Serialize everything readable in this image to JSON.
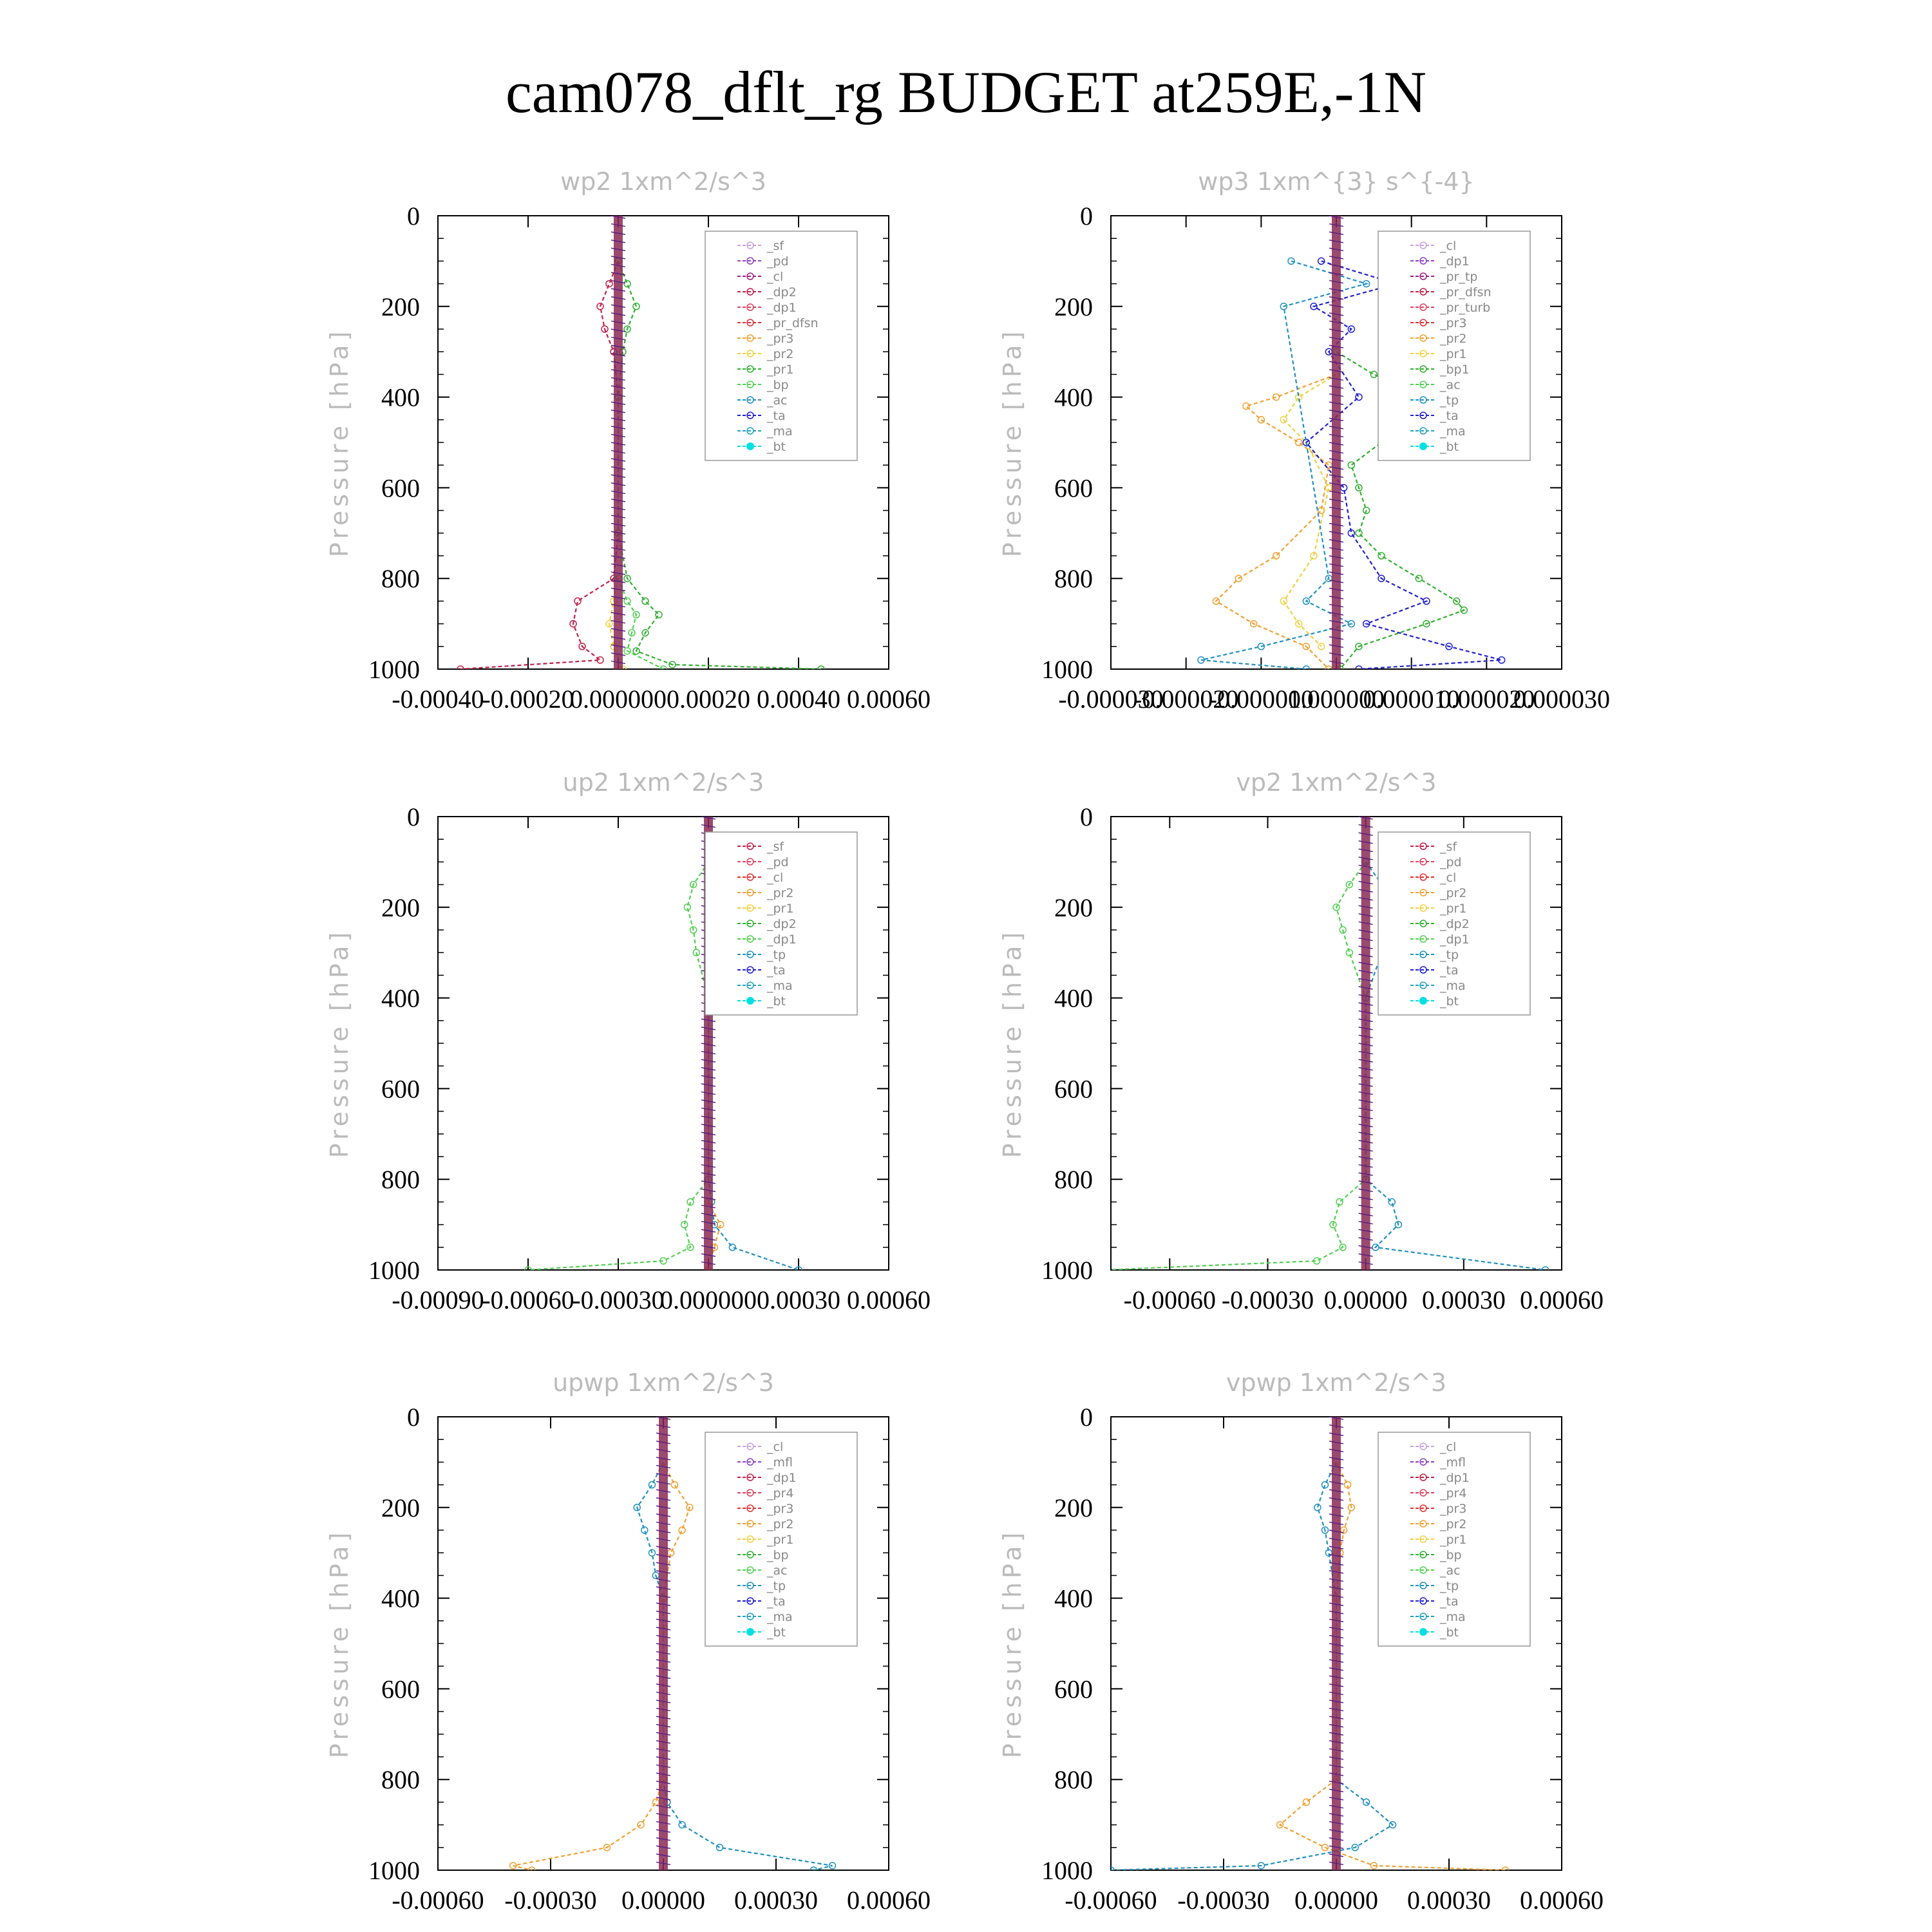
{
  "title": "cam078_dflt_rg  BUDGET at259E,-1N",
  "chart_data": [
    {
      "type": "line",
      "title": "wp2   1xm^2/s^3",
      "ylabel": "Pressure [hPa]",
      "ylim": [
        1000,
        0
      ],
      "yticks": [
        "0",
        "200",
        "400",
        "600",
        "800",
        "1000"
      ],
      "xlim": [
        -0.0004,
        0.0006
      ],
      "xticks": [
        "-0.00040",
        "-0.00020",
        "0.000000",
        "0.00020",
        "0.00040",
        "0.00060"
      ],
      "legend": [
        "_sf",
        "_pd",
        "_cl",
        "_dp2",
        "_dp1",
        "_pr_dfsn",
        "_pr3",
        "_pr2",
        "_pr1",
        "_bp",
        "_ac",
        "_ta",
        "_ma",
        "_bt"
      ],
      "colors": [
        "#c8a0e0",
        "#9040c0",
        "#a02080",
        "#c0204a",
        "#e04060",
        "#e03030",
        "#f0a030",
        "#f0d040",
        "#30b030",
        "#50d050",
        "#2090c0",
        "#2020d0",
        "#20a0c0",
        "#00e0e0"
      ],
      "series": [
        {
          "name": "_dp2",
          "y": [
            100,
            150,
            200,
            250,
            300,
            400,
            700,
            800,
            850,
            900,
            950,
            980,
            1000
          ],
          "x": [
            0,
            -2e-05,
            -4e-05,
            -3e-05,
            -1e-05,
            0,
            0,
            -1e-05,
            -9e-05,
            -0.0001,
            -8e-05,
            -4e-05,
            -0.00035
          ]
        },
        {
          "name": "_pr1",
          "y": [
            100,
            150,
            200,
            250,
            300,
            400,
            700,
            800,
            850,
            880,
            920,
            960,
            990,
            1000
          ],
          "x": [
            0,
            2e-05,
            4e-05,
            2e-05,
            1e-05,
            0,
            0,
            2e-05,
            6e-05,
            9e-05,
            6e-05,
            4e-05,
            0.00012,
            0.00045
          ]
        },
        {
          "name": "_pr2",
          "y": [
            800,
            850,
            900,
            950,
            1000
          ],
          "x": [
            0,
            -1e-05,
            -2e-05,
            -1e-05,
            1e-05
          ]
        },
        {
          "name": "_bp",
          "y": [
            800,
            850,
            880,
            920,
            960,
            1000
          ],
          "x": [
            0,
            2e-05,
            4e-05,
            3e-05,
            2e-05,
            0.0001
          ]
        }
      ]
    },
    {
      "type": "line",
      "title": "wp3   1xm^{3} s^{-4}",
      "ylabel": "Pressure [hPa]",
      "ylim": [
        1000,
        0
      ],
      "yticks": [
        "0",
        "200",
        "400",
        "600",
        "800",
        "1000"
      ],
      "xlim": [
        -3e-05,
        3e-05
      ],
      "xticks": [
        "-0.000030",
        "-0.000020",
        "-0.000010",
        "0.000000",
        "0.000010",
        "0.000020",
        "0.000030"
      ],
      "legend": [
        "_cl",
        "_dp1",
        "_pr_tp",
        "_pr_dfsn",
        "_pr_turb",
        "_pr3",
        "_pr2",
        "_pr1",
        "_bp1",
        "_ac",
        "_tp",
        "_ta",
        "_ma",
        "_bt"
      ],
      "colors": [
        "#c8a0e0",
        "#9040c0",
        "#a02080",
        "#c0204a",
        "#e04060",
        "#e03030",
        "#f0a030",
        "#f0d040",
        "#30b030",
        "#50d050",
        "#2090c0",
        "#2020d0",
        "#20a0c0",
        "#00e0e0"
      ],
      "series": [
        {
          "name": "_bp1",
          "y": [
            300,
            350,
            400,
            420,
            450,
            500,
            550,
            600,
            650,
            700,
            750,
            800,
            850,
            870,
            900,
            950,
            1000
          ],
          "x": [
            0,
            5e-06,
            1.2e-05,
            1.3e-05,
            1.2e-05,
            6e-06,
            2e-06,
            3e-06,
            4e-06,
            3e-06,
            6e-06,
            1.1e-05,
            1.6e-05,
            1.7e-05,
            1.2e-05,
            3e-06,
            5e-07
          ]
        },
        {
          "name": "_pr2",
          "y": [
            350,
            400,
            420,
            450,
            500,
            550,
            650,
            750,
            800,
            850,
            900,
            950,
            1000
          ],
          "x": [
            0,
            -8e-06,
            -1.2e-05,
            -1e-05,
            -5e-06,
            -1e-06,
            -2e-06,
            -8e-06,
            -1.3e-05,
            -1.6e-05,
            -1.1e-05,
            -4e-06,
            -1e-06
          ]
        },
        {
          "name": "_pr1",
          "y": [
            350,
            400,
            450,
            500,
            600,
            750,
            850,
            900,
            950
          ],
          "x": [
            0,
            -5e-06,
            -7e-06,
            -4e-06,
            -1e-06,
            -3e-06,
            -7e-06,
            -5e-06,
            -2e-06
          ]
        },
        {
          "name": "_ta",
          "y": [
            100,
            150,
            200,
            250,
            300,
            400,
            500,
            600,
            700,
            800,
            850,
            900,
            950,
            980,
            1000
          ],
          "x": [
            -2e-06,
            8e-06,
            -3e-06,
            2e-06,
            -1e-06,
            3e-06,
            -4e-06,
            1e-06,
            2e-06,
            6e-06,
            1.2e-05,
            4e-06,
            1.5e-05,
            2.2e-05,
            3e-06
          ]
        },
        {
          "name": "_tp",
          "y": [
            100,
            150,
            200,
            800,
            850,
            900,
            950,
            980,
            1000
          ],
          "x": [
            -6e-06,
            4e-06,
            -7e-06,
            -1e-06,
            -4e-06,
            2e-06,
            -1e-05,
            -1.8e-05,
            -4e-06
          ]
        }
      ]
    },
    {
      "type": "line",
      "title": "up2   1xm^2/s^3",
      "ylabel": "Pressure [hPa]",
      "ylim": [
        1000,
        0
      ],
      "yticks": [
        "0",
        "200",
        "400",
        "600",
        "800",
        "1000"
      ],
      "xlim": [
        -0.0009,
        0.0006
      ],
      "xticks": [
        "-0.00090",
        "-0.00060",
        "-0.00030",
        "0.000000",
        "0.00030",
        "0.00060"
      ],
      "legend": [
        "_sf",
        "_pd",
        "_cl",
        "_pr2",
        "_pr1",
        "_dp2",
        "_dp1",
        "_tp",
        "_ta",
        "_ma",
        "_bt"
      ],
      "colors": [
        "#c0204a",
        "#e04060",
        "#e03030",
        "#f0a030",
        "#f0d040",
        "#30b030",
        "#50d050",
        "#2090c0",
        "#2020d0",
        "#20a0c0",
        "#00e0e0"
      ],
      "series": [
        {
          "name": "_dp1",
          "y": [
            100,
            150,
            200,
            250,
            300,
            400,
            800,
            850,
            900,
            950,
            980,
            1000
          ],
          "x": [
            0,
            -5e-05,
            -7e-05,
            -5e-05,
            -4e-05,
            0,
            0,
            -6e-05,
            -8e-05,
            -6e-05,
            -0.00015,
            -0.0006
          ]
        },
        {
          "name": "_tp",
          "y": [
            100,
            150,
            200,
            250,
            300,
            350,
            400,
            800,
            850,
            900,
            950,
            1000
          ],
          "x": [
            0,
            6e-05,
            8e-05,
            6e-05,
            7e-05,
            3e-05,
            0,
            0,
            1e-05,
            2e-05,
            8e-05,
            0.0003
          ]
        },
        {
          "name": "_pr2",
          "y": [
            850,
            900,
            950,
            1000
          ],
          "x": [
            0,
            4e-05,
            2e-05,
            0
          ]
        }
      ]
    },
    {
      "type": "line",
      "title": "vp2   1xm^2/s^3",
      "ylabel": "Pressure [hPa]",
      "ylim": [
        1000,
        0
      ],
      "yticks": [
        "0",
        "200",
        "400",
        "600",
        "800",
        "1000"
      ],
      "xlim": [
        -0.00078,
        0.0006
      ],
      "xticks": [
        "-0.00060",
        "-0.00030",
        "0.00000",
        "0.00030",
        "0.00060"
      ],
      "legend": [
        "_sf",
        "_pd",
        "_cl",
        "_pr2",
        "_pr1",
        "_dp2",
        "_dp1",
        "_tp",
        "_ta",
        "_ma",
        "_bt"
      ],
      "colors": [
        "#c0204a",
        "#e04060",
        "#e03030",
        "#f0a030",
        "#f0d040",
        "#30b030",
        "#50d050",
        "#2090c0",
        "#2020d0",
        "#20a0c0",
        "#00e0e0"
      ],
      "series": [
        {
          "name": "_dp1",
          "y": [
            100,
            150,
            200,
            250,
            300,
            400,
            800,
            850,
            900,
            950,
            980,
            1000
          ],
          "x": [
            0,
            -5e-05,
            -9e-05,
            -7e-05,
            -5e-05,
            0,
            0,
            -8e-05,
            -0.0001,
            -7e-05,
            -0.00015,
            -0.0008
          ]
        },
        {
          "name": "_tp",
          "y": [
            100,
            150,
            200,
            250,
            300,
            400,
            800,
            850,
            900,
            950,
            1000
          ],
          "x": [
            0,
            5e-05,
            9e-05,
            6e-05,
            5e-05,
            0,
            0,
            8e-05,
            0.0001,
            3e-05,
            0.00055
          ]
        }
      ]
    },
    {
      "type": "line",
      "title": "upwp   1xm^2/s^3",
      "ylabel": "Pressure [hPa]",
      "ylim": [
        1000,
        0
      ],
      "yticks": [
        "0",
        "200",
        "400",
        "600",
        "800",
        "1000"
      ],
      "xlim": [
        -0.0006,
        0.0006
      ],
      "xticks": [
        "-0.00060",
        "-0.00030",
        "0.00000",
        "0.00030",
        "0.00060"
      ],
      "legend": [
        "_cl",
        "_mfl",
        "_dp1",
        "_pr4",
        "_pr3",
        "_pr2",
        "_pr1",
        "_bp",
        "_ac",
        "_tp",
        "_ta",
        "_ma",
        "_bt"
      ],
      "colors": [
        "#c8a0e0",
        "#9040c0",
        "#c0204a",
        "#e04060",
        "#e03030",
        "#f0a030",
        "#f0d040",
        "#30b030",
        "#50d050",
        "#2090c0",
        "#2020d0",
        "#20a0c0",
        "#00e0e0"
      ],
      "series": [
        {
          "name": "_tp",
          "y": [
            100,
            150,
            200,
            250,
            300,
            350,
            400,
            800,
            850,
            900,
            950,
            990,
            1000
          ],
          "x": [
            0,
            -3e-05,
            -7e-05,
            -5e-05,
            -3e-05,
            -2e-05,
            0,
            0,
            1e-05,
            5e-05,
            0.00015,
            0.00045,
            0.0004
          ]
        },
        {
          "name": "_pr2",
          "y": [
            100,
            150,
            200,
            250,
            300,
            400,
            800,
            850,
            900,
            950,
            990,
            1000
          ],
          "x": [
            0,
            3e-05,
            7e-05,
            5e-05,
            2e-05,
            0,
            0,
            -2e-05,
            -6e-05,
            -0.00015,
            -0.0004,
            -0.00035
          ]
        }
      ]
    },
    {
      "type": "line",
      "title": "vpwp   1xm^2/s^3",
      "ylabel": "Pressure [hPa]",
      "ylim": [
        1000,
        0
      ],
      "yticks": [
        "0",
        "200",
        "400",
        "600",
        "800",
        "1000"
      ],
      "xlim": [
        -0.0006,
        0.0006
      ],
      "xticks": [
        "-0.00060",
        "-0.00030",
        "0.00000",
        "0.00030",
        "0.00060"
      ],
      "legend": [
        "_cl",
        "_mfl",
        "_dp1",
        "_pr4",
        "_pr3",
        "_pr2",
        "_pr1",
        "_bp",
        "_ac",
        "_tp",
        "_ta",
        "_ma",
        "_bt"
      ],
      "colors": [
        "#c8a0e0",
        "#9040c0",
        "#c0204a",
        "#e04060",
        "#e03030",
        "#f0a030",
        "#f0d040",
        "#30b030",
        "#50d050",
        "#2090c0",
        "#2020d0",
        "#20a0c0",
        "#00e0e0"
      ],
      "series": [
        {
          "name": "_tp",
          "y": [
            100,
            150,
            200,
            250,
            300,
            400,
            800,
            850,
            900,
            950,
            990,
            1000
          ],
          "x": [
            0,
            -3e-05,
            -5e-05,
            -3e-05,
            -2e-05,
            0,
            0,
            8e-05,
            0.00015,
            5e-05,
            -0.0002,
            -0.0006
          ]
        },
        {
          "name": "_pr2",
          "y": [
            100,
            150,
            200,
            250,
            300,
            400,
            800,
            850,
            900,
            950,
            990,
            1000
          ],
          "x": [
            0,
            3e-05,
            4e-05,
            2e-05,
            1e-05,
            0,
            0,
            -8e-05,
            -0.00015,
            -3e-05,
            0.0001,
            0.00045
          ]
        }
      ]
    }
  ]
}
